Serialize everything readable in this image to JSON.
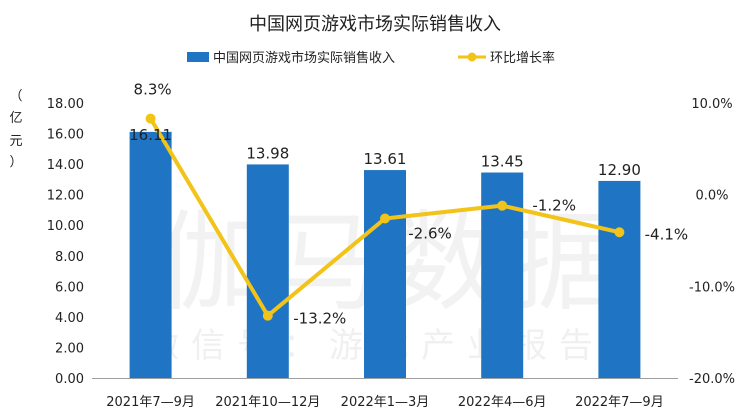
{
  "chart_data": {
    "type": "bar",
    "title": "中国网页游戏市场实际销售收入",
    "categories": [
      "2021年7—9月",
      "2021年10—12月",
      "2022年1—3月",
      "2022年4—6月",
      "2022年7—9月"
    ],
    "series": [
      {
        "name": "中国网页游戏市场实际销售收入",
        "type": "bar",
        "axis": "left",
        "values": [
          16.11,
          13.98,
          13.61,
          13.45,
          12.9
        ],
        "value_labels": [
          "16.11",
          "13.98",
          "13.61",
          "13.45",
          "12.90"
        ],
        "color": "#1f74c3"
      },
      {
        "name": "环比增长率",
        "type": "line",
        "axis": "right",
        "values": [
          8.3,
          -13.2,
          -2.6,
          -1.2,
          -4.1
        ],
        "value_labels": [
          "8.3%",
          "-13.2%",
          "-2.6%",
          "-1.2%",
          "-4.1%"
        ],
        "color": "#f2c318"
      }
    ],
    "ylabel": "（亿元）",
    "ylabel_chars": [
      "（",
      "亿",
      "元",
      "）"
    ],
    "ylim": [
      0,
      18
    ],
    "yticks": [
      0,
      2,
      4,
      6,
      8,
      10,
      12,
      14,
      16,
      18
    ],
    "ytick_labels": [
      "0.00",
      "2.00",
      "4.00",
      "6.00",
      "8.00",
      "10.00",
      "12.00",
      "14.00",
      "16.00",
      "18.00"
    ],
    "y2lim": [
      -20,
      10
    ],
    "y2ticks": [
      10,
      0,
      -10,
      -20
    ],
    "y2tick_labels": [
      "10.0%",
      "0.0%",
      "-10.0%",
      "-20.0%"
    ],
    "legend_position": "top-center",
    "grid": false
  },
  "watermark": {
    "main": "伽马数据",
    "sub": "微信号：游戏产业报告"
  }
}
